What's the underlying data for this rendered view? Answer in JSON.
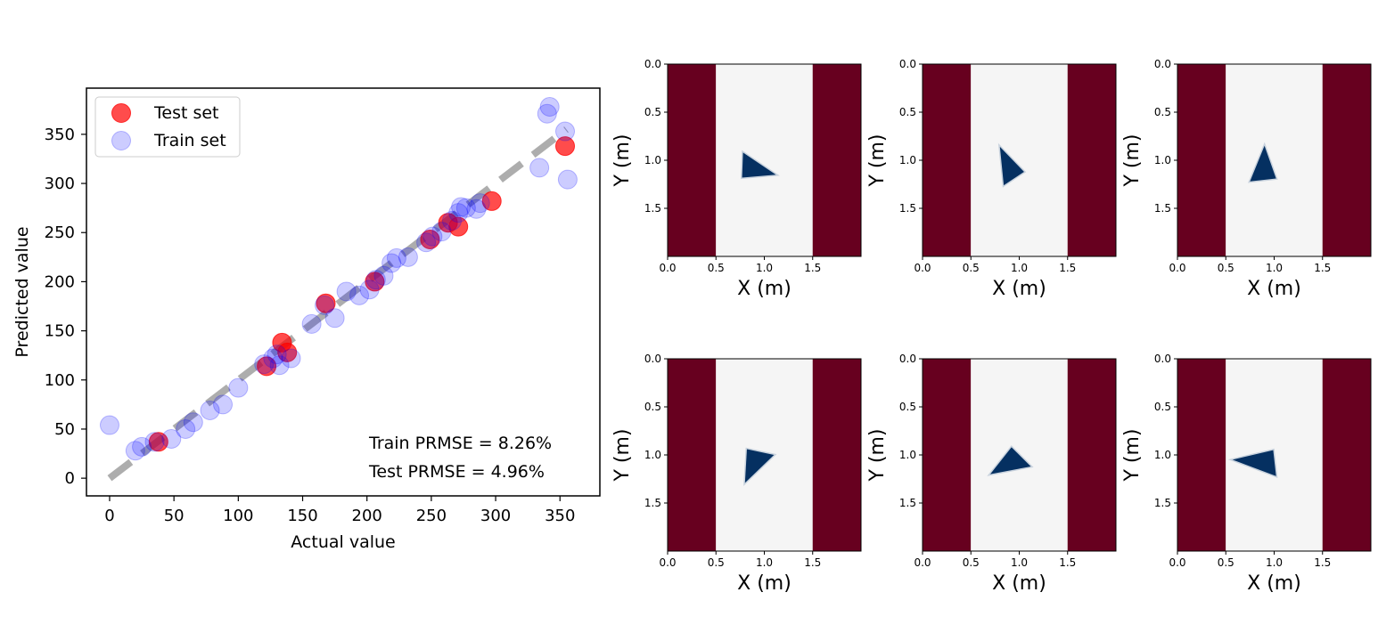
{
  "chart_data": [
    {
      "type": "scatter",
      "title": "",
      "xlabel": "Actual value",
      "ylabel": "Predicted value",
      "xlim": [
        -18,
        381
      ],
      "ylim": [
        -18,
        397
      ],
      "xticks": [
        0,
        50,
        100,
        150,
        200,
        250,
        300,
        350
      ],
      "yticks": [
        0,
        50,
        100,
        150,
        200,
        250,
        300,
        350
      ],
      "reference_line": {
        "from": [
          0,
          0
        ],
        "to": [
          355,
          355
        ],
        "color": "#999999",
        "style": "dashed"
      },
      "legend": {
        "position": "top-left"
      },
      "series": [
        {
          "name": "Test set",
          "color": "#ff0000",
          "alpha": 0.7,
          "points": [
            [
              38,
              37
            ],
            [
              122,
              114
            ],
            [
              134,
              138
            ],
            [
              138,
              128
            ],
            [
              168,
              178
            ],
            [
              206,
              200
            ],
            [
              249,
              243
            ],
            [
              263,
              260
            ],
            [
              271,
              256
            ],
            [
              297,
              282
            ],
            [
              354,
              338
            ]
          ]
        },
        {
          "name": "Train set",
          "color": "#0000ff",
          "alpha": 0.2,
          "points": [
            [
              0,
              54
            ],
            [
              20,
              28
            ],
            [
              25,
              32
            ],
            [
              35,
              37
            ],
            [
              48,
              40
            ],
            [
              59,
              50
            ],
            [
              65,
              57
            ],
            [
              78,
              69
            ],
            [
              88,
              75
            ],
            [
              100,
              92
            ],
            [
              120,
              116
            ],
            [
              127,
              122
            ],
            [
              130,
              126
            ],
            [
              132,
              115
            ],
            [
              141,
              122
            ],
            [
              157,
              157
            ],
            [
              167,
              176
            ],
            [
              175,
              163
            ],
            [
              184,
              190
            ],
            [
              194,
              186
            ],
            [
              202,
              192
            ],
            [
              207,
              202
            ],
            [
              213,
              206
            ],
            [
              219,
              219
            ],
            [
              223,
              224
            ],
            [
              232,
              225
            ],
            [
              246,
              240
            ],
            [
              251,
              246
            ],
            [
              258,
              251
            ],
            [
              266,
              262
            ],
            [
              271,
              270
            ],
            [
              273,
              276
            ],
            [
              277,
              275
            ],
            [
              285,
              274
            ],
            [
              288,
              280
            ],
            [
              334,
              316
            ],
            [
              340,
              371
            ],
            [
              342,
              378
            ],
            [
              354,
              353
            ],
            [
              356,
              304
            ]
          ]
        }
      ],
      "annotations": [
        "Train PRMSE = 8.26%",
        "Test PRMSE = 4.96%"
      ]
    },
    {
      "type": "heatmap",
      "panels": [
        {
          "xlabel": "X (m)",
          "ylabel": "Y (m)",
          "triangle": [
            [
              0.78,
              0.92
            ],
            [
              1.12,
              1.15
            ],
            [
              0.77,
              1.18
            ]
          ]
        },
        {
          "xlabel": "X (m)",
          "ylabel": "Y (m)",
          "triangle": [
            [
              0.8,
              0.86
            ],
            [
              1.05,
              1.12
            ],
            [
              0.84,
              1.26
            ]
          ]
        },
        {
          "xlabel": "X (m)",
          "ylabel": "Y (m)",
          "triangle": [
            [
              0.9,
              0.85
            ],
            [
              1.02,
              1.19
            ],
            [
              0.75,
              1.22
            ]
          ]
        },
        {
          "xlabel": "X (m)",
          "ylabel": "Y (m)",
          "triangle": [
            [
              0.82,
              0.94
            ],
            [
              1.1,
              1.0
            ],
            [
              0.8,
              1.29
            ]
          ]
        },
        {
          "xlabel": "X (m)",
          "ylabel": "Y (m)",
          "triangle": [
            [
              0.92,
              0.92
            ],
            [
              1.12,
              1.12
            ],
            [
              0.7,
              1.2
            ]
          ]
        },
        {
          "xlabel": "X (m)",
          "ylabel": "Y (m)",
          "triangle": [
            [
              0.99,
              0.95
            ],
            [
              1.02,
              1.22
            ],
            [
              0.57,
              1.05
            ]
          ]
        }
      ],
      "xlim": [
        0,
        2.0
      ],
      "ylim": [
        0,
        2.0
      ],
      "y_inverted": true,
      "xticks": [
        "0.0",
        "0.5",
        "1.0",
        "1.5"
      ],
      "yticks": [
        "0.0",
        "0.5",
        "1.0",
        "1.5"
      ],
      "regions": [
        {
          "name": "left-wall",
          "x": [
            0,
            0.5
          ],
          "color": "#67001f"
        },
        {
          "name": "free-space",
          "x": [
            0.5,
            1.5
          ],
          "color": "#f5f5f5"
        },
        {
          "name": "right-wall",
          "x": [
            1.5,
            2.0
          ],
          "color": "#67001f"
        }
      ],
      "shape_color": "#053061"
    }
  ]
}
